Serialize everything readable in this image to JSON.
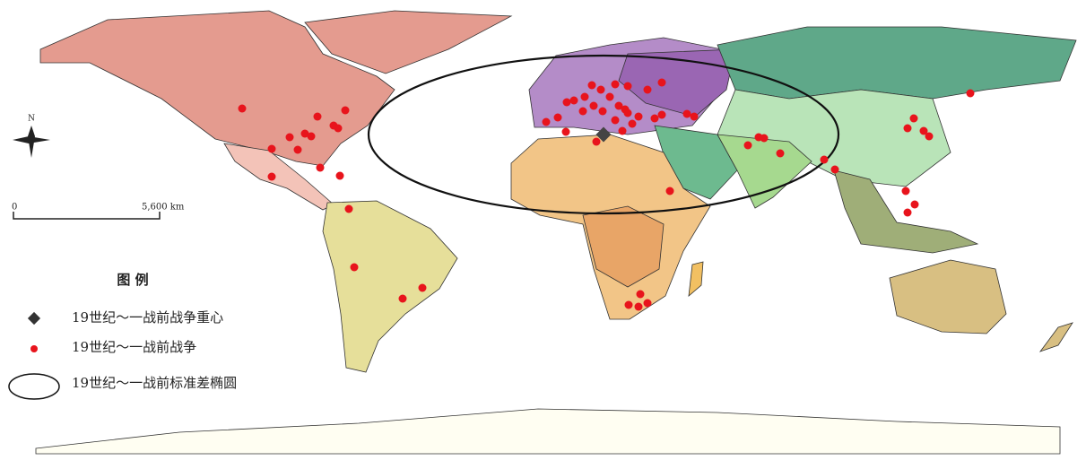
{
  "north_label": "N",
  "scale_bar": {
    "start": "0",
    "end": "5,600 km"
  },
  "legend": {
    "title": "图 例",
    "items": [
      "19世纪～一战前战争重心",
      "19世纪～一战前战争",
      "19世纪～一战前标准差椭圆"
    ]
  }
}
